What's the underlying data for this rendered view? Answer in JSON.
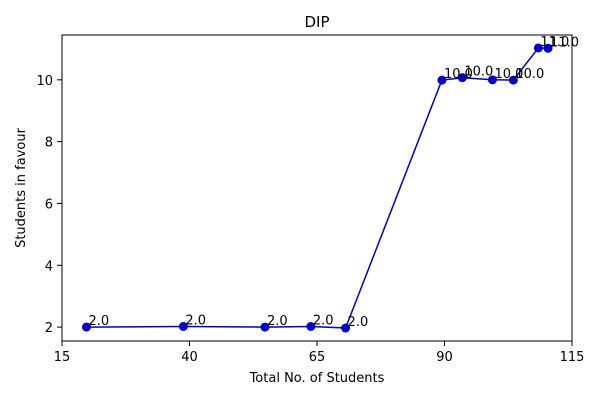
{
  "chart_data": {
    "type": "line",
    "title": "DIP",
    "xlabel": "Total No. of Students",
    "ylabel": "Students in favour",
    "xlim": [
      15,
      115
    ],
    "ylim": [
      1.55,
      11.45
    ],
    "xticks": [
      "15",
      "40",
      "65",
      "90",
      "115"
    ],
    "yticks": [
      "2",
      "4",
      "6",
      "8",
      "10"
    ],
    "grid": false,
    "color": "#0000cc",
    "series": [
      {
        "points": [
          {
            "x": 19.8,
            "y": 2.0,
            "label": "2.0"
          },
          {
            "x": 38.8,
            "y": 2.02,
            "label": "2.0"
          },
          {
            "x": 54.8,
            "y": 2.0,
            "label": "2.0"
          },
          {
            "x": 63.8,
            "y": 2.02,
            "label": "2.0"
          },
          {
            "x": 70.6,
            "y": 1.97,
            "label": "2.0"
          },
          {
            "x": 89.5,
            "y": 9.99,
            "label": "10.0"
          },
          {
            "x": 93.5,
            "y": 10.07,
            "label": "10.0"
          },
          {
            "x": 99.4,
            "y": 10.0,
            "label": "10.0"
          },
          {
            "x": 103.5,
            "y": 9.99,
            "label": "10.0"
          },
          {
            "x": 108.4,
            "y": 11.03,
            "label": "11.0"
          },
          {
            "x": 110.3,
            "y": 11.02,
            "label": "11.0"
          }
        ]
      }
    ]
  }
}
